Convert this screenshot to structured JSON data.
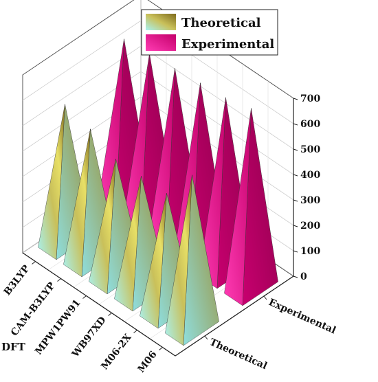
{
  "chart_data": {
    "type": "bar3d",
    "categories": [
      "M06",
      "M06-2X",
      "WB97XD",
      "MPW1PW91",
      "CAM-B3LYP",
      "B3LYP"
    ],
    "x_axis_title": "DFT",
    "depth_categories": [
      "Theoretical",
      "Experimental"
    ],
    "series": [
      {
        "name": "Theoretical",
        "values": [
          600,
          460,
          460,
          460,
          510,
          540
        ]
      },
      {
        "name": "Experimental",
        "values": [
          705,
          680,
          670,
          660,
          650,
          640
        ]
      }
    ],
    "z_ticks": [
      "0",
      "100",
      "200",
      "300",
      "400",
      "500",
      "600",
      "700"
    ],
    "zlim": [
      0,
      700
    ],
    "grid": true,
    "legend": "top-center",
    "colors": {
      "theoretical_light": "#a8f2f2",
      "theoretical_mid": "#c9c05a",
      "theoretical_dark": "#7d6a1c",
      "experimental_light": "#ff1fa6",
      "experimental_dark": "#b0005e"
    }
  }
}
